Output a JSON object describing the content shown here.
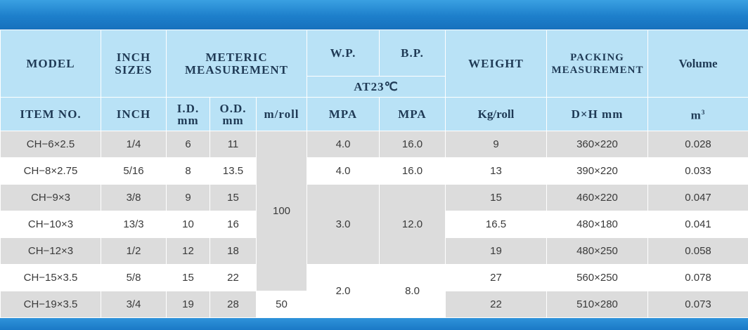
{
  "header": {
    "model": "MODEL",
    "inch_sizes": "INCH SIZES",
    "meteric_measurement": "METERIC MEASUREMENT",
    "wp": "W.P.",
    "bp": "B.P.",
    "weight": "WEIGHT",
    "packing_measurement": "PACKING MEASUREMENT",
    "volume": "Volume",
    "at_temp": "AT23℃"
  },
  "subheader": {
    "item_no": "ITEM NO.",
    "inch": "INCH",
    "id": "I.D.",
    "od": "O.D.",
    "mm": "mm",
    "mroll": "m/roll",
    "mpa1": "MPA",
    "mpa2": "MPA",
    "kgroll": "Kg/roll",
    "dxh": "D×H mm",
    "m3": "m",
    "m3_sup": "3"
  },
  "rows": [
    {
      "model": "CH−6×2.5",
      "inch": "1/4",
      "id": "6",
      "od": "11",
      "weight": "9",
      "packing": "360×220",
      "volume": "0.028"
    },
    {
      "model": "CH−8×2.75",
      "inch": "5/16",
      "id": "8",
      "od": "13.5",
      "weight": "13",
      "packing": "390×220",
      "volume": "0.033"
    },
    {
      "model": "CH−9×3",
      "inch": "3/8",
      "id": "9",
      "od": "15",
      "weight": "15",
      "packing": "460×220",
      "volume": "0.047"
    },
    {
      "model": "CH−10×3",
      "inch": "13/3",
      "id": "10",
      "od": "16",
      "weight": "16.5",
      "packing": "480×180",
      "volume": "0.041"
    },
    {
      "model": "CH−12×3",
      "inch": "1/2",
      "id": "12",
      "od": "18",
      "weight": "19",
      "packing": "480×250",
      "volume": "0.058"
    },
    {
      "model": "CH−15×3.5",
      "inch": "5/8",
      "id": "15",
      "od": "22",
      "weight": "27",
      "packing": "560×250",
      "volume": "0.078"
    },
    {
      "model": "CH−19×3.5",
      "inch": "3/4",
      "id": "19",
      "od": "28",
      "weight": "22",
      "packing": "510×280",
      "volume": "0.073"
    }
  ],
  "merged": {
    "mroll_100": "100",
    "mroll_50": "50",
    "wp_row1": "4.0",
    "bp_row1": "16.0",
    "wp_row2": "4.0",
    "bp_row2": "16.0",
    "wp_mid": "3.0",
    "bp_mid": "12.0",
    "wp_low": "2.0",
    "bp_low": "8.0"
  },
  "colors": {
    "banner": "#1d7fcb",
    "header_bg": "#b9e2f6",
    "row_gray": "#dcdcdc",
    "row_white": "#ffffff"
  }
}
